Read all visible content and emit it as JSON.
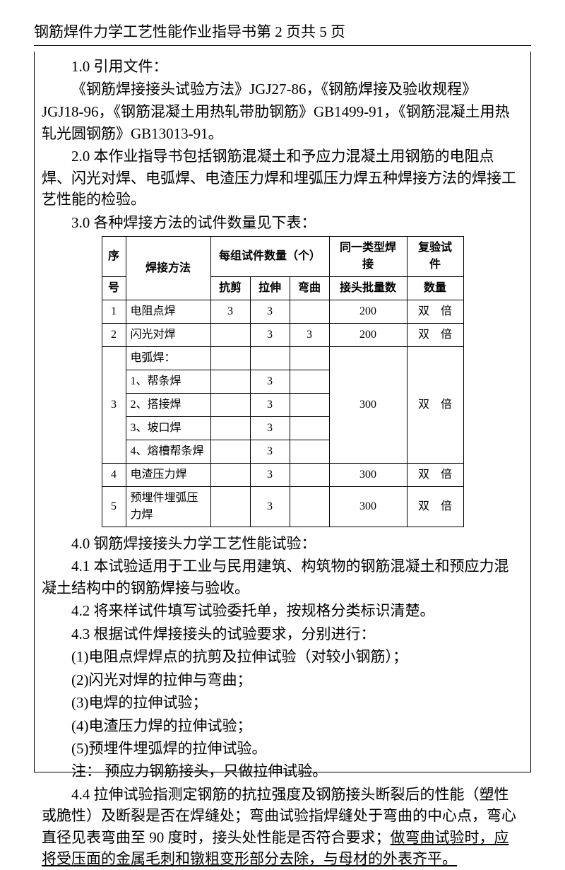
{
  "header": {
    "title": "钢筋焊件力学工艺性能作业指导书",
    "page_current": "第 2 页",
    "page_total": "共 5 页"
  },
  "sections": {
    "s1_0": "1.0 引用文件：",
    "s1_0_body1": "《钢筋焊接接头试验方法》JGJ27-86，《钢筋焊接及验收规程》",
    "s1_0_body2": "JGJ18-96，《钢筋混凝土用热轧带肋钢筋》GB1499-91，《钢筋混凝土用热轧光圆钢筋》GB13013-91。",
    "s2_0": "2.0 本作业指导书包括钢筋混凝土和予应力混凝土用钢筋的电阻点焊、闪光对焊、电弧焊、电渣压力焊和埋弧压力焊五种焊接方法的焊接工艺性能的检验。",
    "s3_0": "3.0 各种焊接方法的试件数量见下表：",
    "s4_0": "4.0 钢筋焊接接头力学工艺性能试验：",
    "s4_1": "4.1 本试验适用于工业与民用建筑、构筑物的钢筋混凝土和预应力混凝土结构中的钢筋焊接与验收。",
    "s4_2": "4.2 将来样试件填写试验委托单，按规格分类标识清楚。",
    "s4_3": "4.3 根据试件焊接接头的试验要求，分别进行：",
    "s4_3_1": "(1)电阻点焊焊点的抗剪及拉伸试验（对较小钢筋）；",
    "s4_3_2": "(2)闪光对焊的拉伸与弯曲；",
    "s4_3_3": "(3)电焊的拉伸试验；",
    "s4_3_4": "(4)电渣压力焊的拉伸试验；",
    "s4_3_5": "(5)预埋件埋弧焊的拉伸试验。",
    "s4_3_note": "注： 预应力钢筋接头，只做拉伸试验。",
    "s4_4_a": "4.4 拉伸试验指测定钢筋的抗拉强度及钢筋接头断裂后的性能（塑性或脆性）及断裂是否在焊缝处；弯曲试验指焊缝处于弯曲的中心点，弯心直径见表弯曲至 90 度时，接头处性能是否符合要求；",
    "s4_4_b": "做弯曲试验时，应将受压面的金属毛刺和镦粗变形部分去除，与母材的外表齐平。"
  },
  "table": {
    "headers": {
      "seq1": "序",
      "seq2": "号",
      "method": "焊接方法",
      "per_group": "每组试件数量（个）",
      "shear": "抗剪",
      "tensile": "拉伸",
      "bend": "弯曲",
      "same_type1": "同一类型焊接",
      "same_type2": "接头批量数",
      "retest1": "复验试件",
      "retest2": "数量"
    },
    "rows": [
      {
        "n": "1",
        "method": "电阻点焊",
        "shear": "3",
        "tensile": "3",
        "bend": "",
        "batch": "200",
        "retest": "双　倍"
      },
      {
        "n": "2",
        "method": "闪光对焊",
        "shear": "",
        "tensile": "3",
        "bend": "3",
        "batch": "200",
        "retest": "双　倍"
      },
      {
        "n": "3",
        "method": "电弧焊：",
        "shear": "",
        "tensile": "",
        "bend": "",
        "batch": "",
        "retest": ""
      },
      {
        "n": "",
        "method": "1、帮条焊",
        "shear": "",
        "tensile": "3",
        "bend": "",
        "batch": "",
        "retest": ""
      },
      {
        "n": "",
        "method": "2、搭接焊",
        "shear": "",
        "tensile": "3",
        "bend": "",
        "batch": "300",
        "retest": "双　倍"
      },
      {
        "n": "",
        "method": "3、坡口焊",
        "shear": "",
        "tensile": "3",
        "bend": "",
        "batch": "",
        "retest": ""
      },
      {
        "n": "",
        "method": "4、熔槽帮条焊",
        "shear": "",
        "tensile": "3",
        "bend": "",
        "batch": "",
        "retest": ""
      },
      {
        "n": "4",
        "method": "电渣压力焊",
        "shear": "",
        "tensile": "3",
        "bend": "",
        "batch": "300",
        "retest": "双　倍"
      },
      {
        "n": "5",
        "method": "预埋件埋弧压力焊",
        "shear": "",
        "tensile": "3",
        "bend": "",
        "batch": "300",
        "retest": "双　倍"
      }
    ]
  }
}
